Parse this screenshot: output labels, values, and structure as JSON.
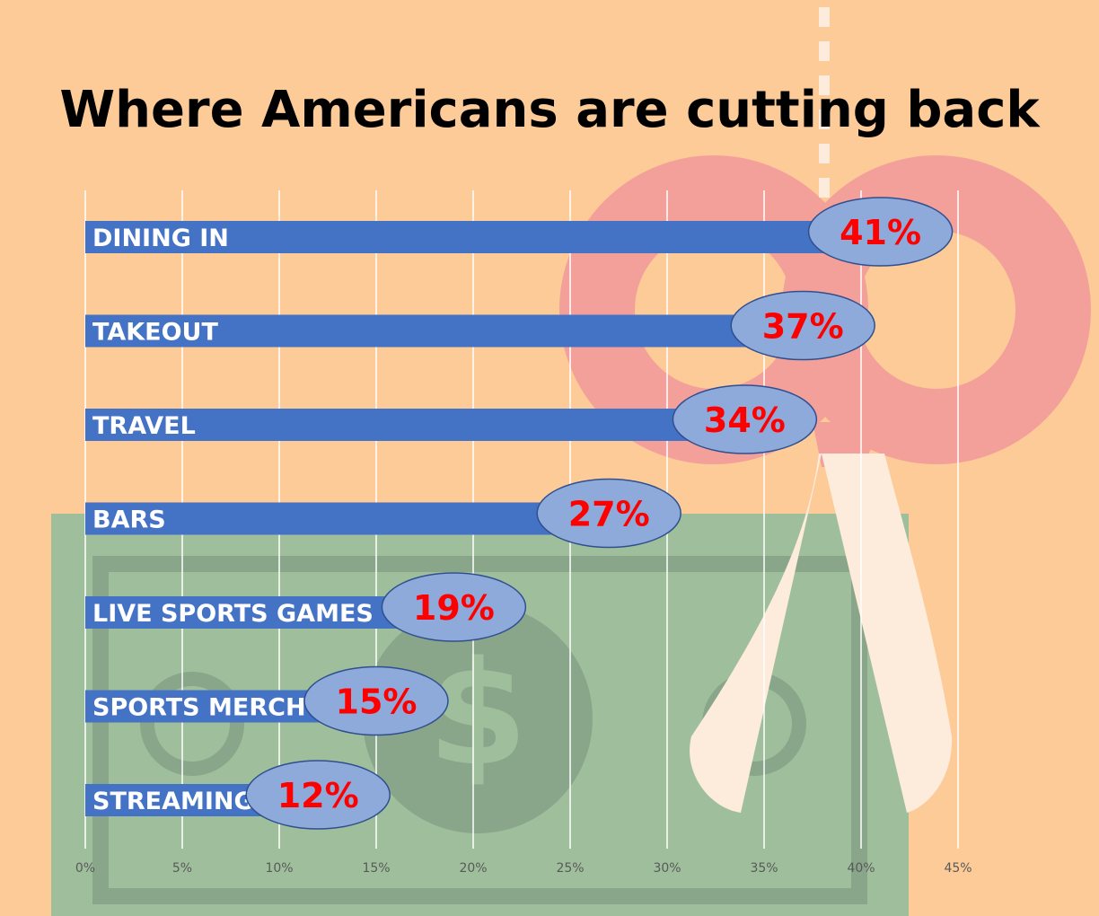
{
  "colors": {
    "background": "#fccb98",
    "bar": "#4472c4",
    "ellipse_fill": "#8eaadb",
    "ellipse_stroke": "#2f4f8f",
    "value_text": "#ff0000",
    "bar_label": "#ffffff",
    "gridline": "#ffffff",
    "tick_text": "#595959",
    "scissors_handle": "#f4a09a",
    "scissors_blade": "#fdebdc",
    "bill": "#9fbf9c",
    "bill_line": "#8aa68a"
  },
  "decorations": [
    "scissors-icon",
    "dollar-bill-icon",
    "dollar-sign-icon",
    "cut-line"
  ],
  "chart_data": {
    "type": "bar",
    "orientation": "horizontal",
    "title": "Where Americans are cutting back",
    "categories": [
      "DINING IN",
      "TAKEOUT",
      "TRAVEL",
      "BARS",
      "LIVE SPORTS GAMES",
      "SPORTS MERCH",
      "STREAMING"
    ],
    "values": [
      41,
      37,
      34,
      27,
      19,
      15,
      12
    ],
    "value_labels": [
      "41%",
      "37%",
      "34%",
      "27%",
      "19%",
      "15%",
      "12%"
    ],
    "xlim": [
      0,
      45
    ],
    "xticks": [
      0,
      5,
      10,
      15,
      20,
      25,
      30,
      35,
      40,
      45
    ],
    "xtick_labels": [
      "0%",
      "5%",
      "10%",
      "15%",
      "20%",
      "25%",
      "30%",
      "35%",
      "40%",
      "45%"
    ],
    "grid": true,
    "legend": "none"
  }
}
